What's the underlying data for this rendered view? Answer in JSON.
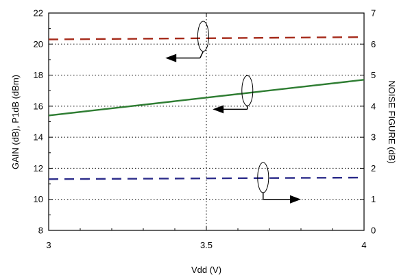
{
  "chart_data": {
    "type": "line",
    "xlabel": "Vdd (V)",
    "ylabel_left": "GAIN (dB), P1dB (dBm)",
    "ylabel_right": "NOISE FIGURE (dB)",
    "xlim": [
      3,
      4
    ],
    "ylim_left": [
      8,
      22
    ],
    "ylim_right": [
      0,
      7
    ],
    "x_ticks": [
      "3",
      "3.5",
      "4"
    ],
    "y_left_ticks": [
      "8",
      "10",
      "12",
      "14",
      "16",
      "18",
      "20",
      "22"
    ],
    "y_right_ticks": [
      "0",
      "1",
      "2",
      "3",
      "4",
      "5",
      "6",
      "7"
    ],
    "grid": "dotted",
    "series": [
      {
        "axis": "left",
        "style": "dashed",
        "color": "#a52a1a",
        "x": [
          3,
          4
        ],
        "y": [
          20.3,
          20.45
        ]
      },
      {
        "axis": "left",
        "style": "solid",
        "color": "#2e7d32",
        "x": [
          3,
          4
        ],
        "y": [
          15.4,
          17.7
        ]
      },
      {
        "axis": "right",
        "style": "dashed",
        "color": "#2c2c8a",
        "x": [
          3,
          4
        ],
        "y": [
          1.65,
          1.7
        ]
      }
    ],
    "annotations": [
      {
        "points_to": "left",
        "ellipse_at": [
          3.49,
          20.5
        ],
        "arrow_from": [
          3.48,
          19.1
        ],
        "arrow_to": [
          3.37,
          19.1
        ]
      },
      {
        "points_to": "left",
        "ellipse_at": [
          3.63,
          17.0
        ],
        "arrow_from": [
          3.63,
          15.8
        ],
        "arrow_to": [
          3.52,
          15.8
        ]
      },
      {
        "points_to": "right",
        "ellipse_at": [
          3.68,
          11.4
        ],
        "arrow_from": [
          3.68,
          10.0
        ],
        "arrow_to": [
          3.8,
          10.0
        ]
      }
    ]
  }
}
